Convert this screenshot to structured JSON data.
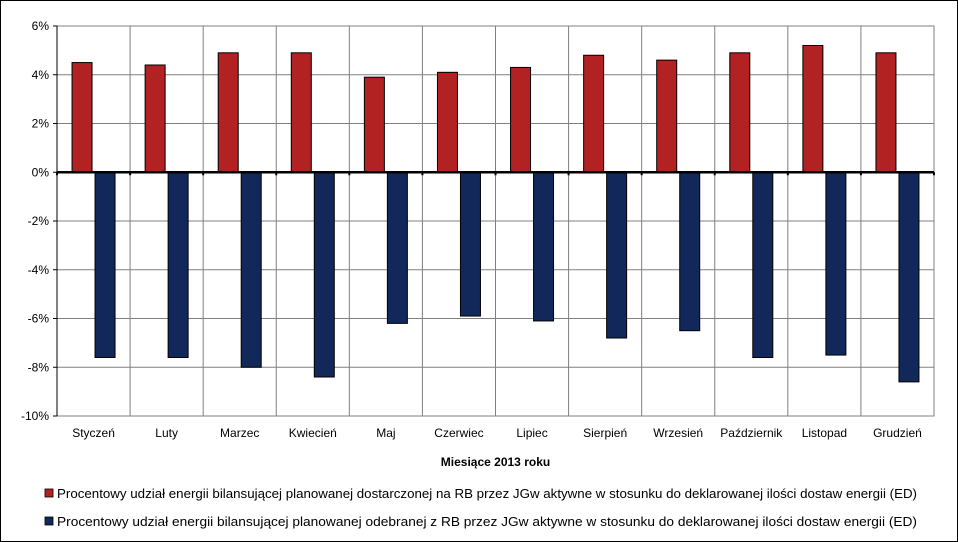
{
  "chart_data": {
    "type": "bar",
    "categories": [
      "Styczeń",
      "Luty",
      "Marzec",
      "Kwiecień",
      "Maj",
      "Czerwiec",
      "Lipiec",
      "Sierpień",
      "Wrzesień",
      "Październik",
      "Listopad",
      "Grudzień"
    ],
    "series": [
      {
        "name": "Procentowy udział energii bilansującej planowanej dostarczonej na RB przez JGw aktywne w stosunku do deklarowanej ilości dostaw energii (ED)",
        "color": "#b22222",
        "values": [
          4.5,
          4.4,
          4.9,
          4.9,
          3.9,
          4.1,
          4.3,
          4.8,
          4.6,
          4.9,
          5.2,
          4.9
        ]
      },
      {
        "name": "Procentowy udział energii bilansującej planowanej odebranej z RB przez JGw aktywne w stosunku do deklarowanej ilości dostaw energii (ED)",
        "color": "#13285a",
        "values": [
          -7.6,
          -7.6,
          -8.0,
          -8.4,
          -6.2,
          -5.9,
          -6.1,
          -6.8,
          -6.5,
          -7.6,
          -7.5,
          -8.6
        ]
      }
    ],
    "xlabel": "Miesiące 2013  roku",
    "ylabel": "",
    "ylim": [
      -10,
      6
    ],
    "yticks": [
      6,
      4,
      2,
      0,
      -2,
      -4,
      -6,
      -8,
      -10
    ],
    "ytick_labels": [
      "6%",
      "4%",
      "2%",
      "0%",
      "-2%",
      "-4%",
      "-6%",
      "-8%",
      "-10%"
    ],
    "grid": true,
    "legend_position": "bottom"
  }
}
